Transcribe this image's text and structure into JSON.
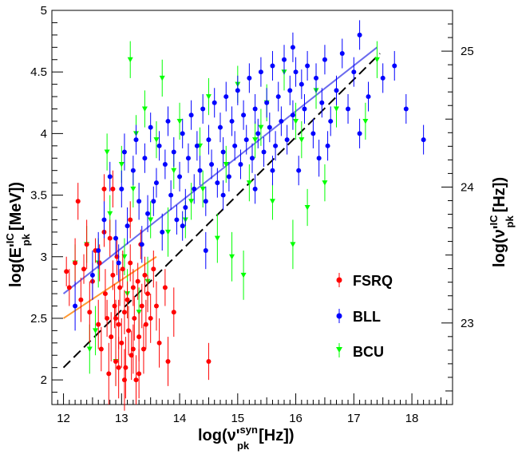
{
  "chart_data": {
    "type": "scatter",
    "xlim": [
      11.8,
      18.7
    ],
    "ylim": [
      1.8,
      5.0
    ],
    "y2lim": [
      22.4,
      25.3
    ],
    "x_ticks": [
      "12",
      "13",
      "14",
      "15",
      "16",
      "17",
      "18"
    ],
    "y_ticks": [
      "2",
      "2.5",
      "3",
      "3.5",
      "4",
      "4.5",
      "5"
    ],
    "y2_ticks": [
      "23",
      "24",
      "25"
    ],
    "xlabel": {
      "base": "log(ν'",
      "sup": "syn",
      "sub": "pk",
      "unit": "[Hz])"
    },
    "ylabel": {
      "base": "log(E'",
      "sup": "IC",
      "sub": "pk",
      "unit": "[MeV])"
    },
    "y2label": {
      "base": "log(ν'",
      "sup": "IC",
      "sub": "pk",
      "unit": "[Hz])"
    },
    "legend_position": "right",
    "series": [
      {
        "name": "FSRQ",
        "color": "#ff0000",
        "marker": "circle",
        "points": [
          [
            12.05,
            2.88,
            0.12
          ],
          [
            12.1,
            2.75,
            0.15
          ],
          [
            12.2,
            2.95,
            0.2
          ],
          [
            12.25,
            3.45,
            0.15
          ],
          [
            12.3,
            2.65,
            0.18
          ],
          [
            12.35,
            2.9,
            0.12
          ],
          [
            12.4,
            3.1,
            0.2
          ],
          [
            12.45,
            2.55,
            0.25
          ],
          [
            12.5,
            2.8,
            0.15
          ],
          [
            12.55,
            3.05,
            0.1
          ],
          [
            12.6,
            2.45,
            0.2
          ],
          [
            12.62,
            2.95,
            0.15
          ],
          [
            12.65,
            2.25,
            0.18
          ],
          [
            12.7,
            3.2,
            0.12
          ],
          [
            12.72,
            2.7,
            0.2
          ],
          [
            12.75,
            2.5,
            0.15
          ],
          [
            12.78,
            2.05,
            0.25
          ],
          [
            12.8,
            3.15,
            0.15
          ],
          [
            12.82,
            2.35,
            0.2
          ],
          [
            12.85,
            2.85,
            0.12
          ],
          [
            12.88,
            2.6,
            0.18
          ],
          [
            12.9,
            2.15,
            0.2
          ],
          [
            12.92,
            3.0,
            0.15
          ],
          [
            12.95,
            2.45,
            0.2
          ],
          [
            12.97,
            2.75,
            0.15
          ],
          [
            13.0,
            2.3,
            0.2
          ],
          [
            13.02,
            2.9,
            0.15
          ],
          [
            13.05,
            2.55,
            0.18
          ],
          [
            13.07,
            2.1,
            0.25
          ],
          [
            13.1,
            2.65,
            0.15
          ],
          [
            13.12,
            2.4,
            0.2
          ],
          [
            13.15,
            2.95,
            0.15
          ],
          [
            13.17,
            2.2,
            0.2
          ],
          [
            13.2,
            2.75,
            0.15
          ],
          [
            13.22,
            2.5,
            0.18
          ],
          [
            13.25,
            2.0,
            0.2
          ],
          [
            13.28,
            2.8,
            0.15
          ],
          [
            13.3,
            2.35,
            0.2
          ],
          [
            13.33,
            3.1,
            0.12
          ],
          [
            13.35,
            2.6,
            0.18
          ],
          [
            13.38,
            2.25,
            0.2
          ],
          [
            13.4,
            2.85,
            0.15
          ],
          [
            13.42,
            2.45,
            0.2
          ],
          [
            13.45,
            2.7,
            0.15
          ],
          [
            13.5,
            2.5,
            0.2
          ],
          [
            13.55,
            2.9,
            0.15
          ],
          [
            13.6,
            2.6,
            0.2
          ],
          [
            13.65,
            2.3,
            0.2
          ],
          [
            13.75,
            2.75,
            0.15
          ],
          [
            13.8,
            2.15,
            0.2
          ],
          [
            13.9,
            2.55,
            0.2
          ],
          [
            14.5,
            2.15,
            0.15
          ],
          [
            12.95,
            2.1,
            0.25
          ],
          [
            13.05,
            2.0,
            0.25
          ],
          [
            12.85,
            3.55,
            0.15
          ],
          [
            13.15,
            3.3,
            0.15
          ],
          [
            12.7,
            3.55,
            0.12
          ],
          [
            13.3,
            2.05,
            0.2
          ],
          [
            12.9,
            2.5,
            0.15
          ],
          [
            13.2,
            2.25,
            0.2
          ]
        ]
      },
      {
        "name": "BLL",
        "color": "#0000ff",
        "marker": "circle",
        "points": [
          [
            12.2,
            2.6,
            0.2
          ],
          [
            12.5,
            2.85,
            0.2
          ],
          [
            12.6,
            3.05,
            0.15
          ],
          [
            12.7,
            3.3,
            0.15
          ],
          [
            12.8,
            3.65,
            0.12
          ],
          [
            12.9,
            3.15,
            0.15
          ],
          [
            13.0,
            3.55,
            0.15
          ],
          [
            13.05,
            3.85,
            0.15
          ],
          [
            13.1,
            3.25,
            0.15
          ],
          [
            13.2,
            3.7,
            0.12
          ],
          [
            13.25,
            3.95,
            0.12
          ],
          [
            13.3,
            3.45,
            0.15
          ],
          [
            13.4,
            3.8,
            0.12
          ],
          [
            13.45,
            3.35,
            0.15
          ],
          [
            13.5,
            4.05,
            0.12
          ],
          [
            13.6,
            3.6,
            0.12
          ],
          [
            13.65,
            3.9,
            0.12
          ],
          [
            13.7,
            3.2,
            0.15
          ],
          [
            13.75,
            3.75,
            0.12
          ],
          [
            13.8,
            4.1,
            0.12
          ],
          [
            13.85,
            3.5,
            0.12
          ],
          [
            13.9,
            3.85,
            0.12
          ],
          [
            14.0,
            3.65,
            0.12
          ],
          [
            14.05,
            4.0,
            0.12
          ],
          [
            14.1,
            3.4,
            0.15
          ],
          [
            14.15,
            3.8,
            0.12
          ],
          [
            14.2,
            4.15,
            0.12
          ],
          [
            14.25,
            3.55,
            0.12
          ],
          [
            14.3,
            3.9,
            0.12
          ],
          [
            14.35,
            3.7,
            0.12
          ],
          [
            14.4,
            4.2,
            0.12
          ],
          [
            14.45,
            3.45,
            0.12
          ],
          [
            14.5,
            3.95,
            0.12
          ],
          [
            14.55,
            3.75,
            0.12
          ],
          [
            14.6,
            4.25,
            0.12
          ],
          [
            14.65,
            3.6,
            0.12
          ],
          [
            14.7,
            4.05,
            0.12
          ],
          [
            14.75,
            3.85,
            0.12
          ],
          [
            14.8,
            4.3,
            0.12
          ],
          [
            14.85,
            3.65,
            0.12
          ],
          [
            14.9,
            4.1,
            0.12
          ],
          [
            14.95,
            3.9,
            0.12
          ],
          [
            15.0,
            4.35,
            0.12
          ],
          [
            15.05,
            3.75,
            0.12
          ],
          [
            15.1,
            4.15,
            0.12
          ],
          [
            15.15,
            3.95,
            0.12
          ],
          [
            15.2,
            4.45,
            0.12
          ],
          [
            15.25,
            3.8,
            0.12
          ],
          [
            15.3,
            4.2,
            0.12
          ],
          [
            15.35,
            4.0,
            0.12
          ],
          [
            15.4,
            4.5,
            0.12
          ],
          [
            15.45,
            3.85,
            0.12
          ],
          [
            15.5,
            4.25,
            0.12
          ],
          [
            15.55,
            4.05,
            0.12
          ],
          [
            15.6,
            4.55,
            0.12
          ],
          [
            15.65,
            3.9,
            0.12
          ],
          [
            15.7,
            4.3,
            0.12
          ],
          [
            15.75,
            4.1,
            0.12
          ],
          [
            15.8,
            4.6,
            0.12
          ],
          [
            15.85,
            3.95,
            0.12
          ],
          [
            15.9,
            4.35,
            0.12
          ],
          [
            15.95,
            4.15,
            0.12
          ],
          [
            16.0,
            4.5,
            0.12
          ],
          [
            16.05,
            3.7,
            0.12
          ],
          [
            16.1,
            4.4,
            0.12
          ],
          [
            16.15,
            4.2,
            0.12
          ],
          [
            16.2,
            4.55,
            0.12
          ],
          [
            16.3,
            4.0,
            0.12
          ],
          [
            16.35,
            4.45,
            0.12
          ],
          [
            16.45,
            4.25,
            0.12
          ],
          [
            16.5,
            4.6,
            0.12
          ],
          [
            16.6,
            4.1,
            0.12
          ],
          [
            16.7,
            4.35,
            0.12
          ],
          [
            16.8,
            4.65,
            0.12
          ],
          [
            16.9,
            4.2,
            0.12
          ],
          [
            17.0,
            4.5,
            0.12
          ],
          [
            17.1,
            4.8,
            0.12
          ],
          [
            17.25,
            4.3,
            0.12
          ],
          [
            17.5,
            4.45,
            0.12
          ],
          [
            17.7,
            4.55,
            0.12
          ],
          [
            17.9,
            4.2,
            0.12
          ],
          [
            18.2,
            3.95,
            0.12
          ],
          [
            15.95,
            4.7,
            0.12
          ],
          [
            16.4,
            3.8,
            0.15
          ],
          [
            14.45,
            3.05,
            0.15
          ],
          [
            13.95,
            3.3,
            0.12
          ],
          [
            15.3,
            3.55,
            0.12
          ],
          [
            16.55,
            3.9,
            0.12
          ],
          [
            12.95,
            2.95,
            0.15
          ],
          [
            13.35,
            3.1,
            0.15
          ],
          [
            13.55,
            3.45,
            0.12
          ],
          [
            14.05,
            3.25,
            0.12
          ],
          [
            14.75,
            3.5,
            0.12
          ],
          [
            15.6,
            3.7,
            0.12
          ],
          [
            17.1,
            4.0,
            0.12
          ]
        ]
      },
      {
        "name": "BCU",
        "color": "#00ff00",
        "marker": "triangle-down",
        "points": [
          [
            12.4,
            3.1,
            0.15
          ],
          [
            12.6,
            2.95,
            0.2
          ],
          [
            12.8,
            3.35,
            0.15
          ],
          [
            13.0,
            3.75,
            0.15
          ],
          [
            13.1,
            2.7,
            0.2
          ],
          [
            13.2,
            3.55,
            0.15
          ],
          [
            13.4,
            4.2,
            0.15
          ],
          [
            13.5,
            3.3,
            0.15
          ],
          [
            13.6,
            3.95,
            0.15
          ],
          [
            13.7,
            4.45,
            0.15
          ],
          [
            13.8,
            3.2,
            0.2
          ],
          [
            13.9,
            3.7,
            0.15
          ],
          [
            14.0,
            4.1,
            0.15
          ],
          [
            14.2,
            3.45,
            0.15
          ],
          [
            14.35,
            3.9,
            0.15
          ],
          [
            14.5,
            4.3,
            0.15
          ],
          [
            14.65,
            3.15,
            0.2
          ],
          [
            14.8,
            3.75,
            0.15
          ],
          [
            15.0,
            4.4,
            0.15
          ],
          [
            15.1,
            2.85,
            0.2
          ],
          [
            15.2,
            3.6,
            0.15
          ],
          [
            15.4,
            4.05,
            0.15
          ],
          [
            15.6,
            3.45,
            0.15
          ],
          [
            15.8,
            4.5,
            0.15
          ],
          [
            15.95,
            3.1,
            0.2
          ],
          [
            16.1,
            3.95,
            0.15
          ],
          [
            16.35,
            4.35,
            0.15
          ],
          [
            16.5,
            3.6,
            0.15
          ],
          [
            16.7,
            4.2,
            0.15
          ],
          [
            17.2,
            4.1,
            0.15
          ],
          [
            17.4,
            4.6,
            0.15
          ],
          [
            13.3,
            2.55,
            0.2
          ],
          [
            12.55,
            2.4,
            0.2
          ],
          [
            12.9,
            2.15,
            0.2
          ],
          [
            13.15,
            4.6,
            0.15
          ],
          [
            14.1,
            3.3,
            0.15
          ],
          [
            14.9,
            3.0,
            0.2
          ],
          [
            15.5,
            4.25,
            0.15
          ],
          [
            16.2,
            3.4,
            0.15
          ],
          [
            12.75,
            3.85,
            0.15
          ],
          [
            13.45,
            2.8,
            0.2
          ],
          [
            14.4,
            3.55,
            0.15
          ],
          [
            15.3,
            3.95,
            0.15
          ],
          [
            16.0,
            4.1,
            0.15
          ],
          [
            12.2,
            2.95,
            0.15
          ],
          [
            12.45,
            2.25,
            0.2
          ],
          [
            13.05,
            3.0,
            0.15
          ],
          [
            13.25,
            4.0,
            0.15
          ]
        ]
      }
    ],
    "fit_lines": [
      {
        "color": "#6a6aee",
        "style": "solid",
        "points": [
          [
            12.0,
            2.7
          ],
          [
            17.4,
            4.7
          ]
        ]
      },
      {
        "color": "#ff9933",
        "style": "solid",
        "points": [
          [
            12.0,
            2.5
          ],
          [
            13.6,
            3.0
          ]
        ]
      },
      {
        "color": "#000000",
        "style": "dashed",
        "points": [
          [
            12.0,
            2.1
          ],
          [
            17.45,
            4.65
          ]
        ]
      }
    ]
  }
}
